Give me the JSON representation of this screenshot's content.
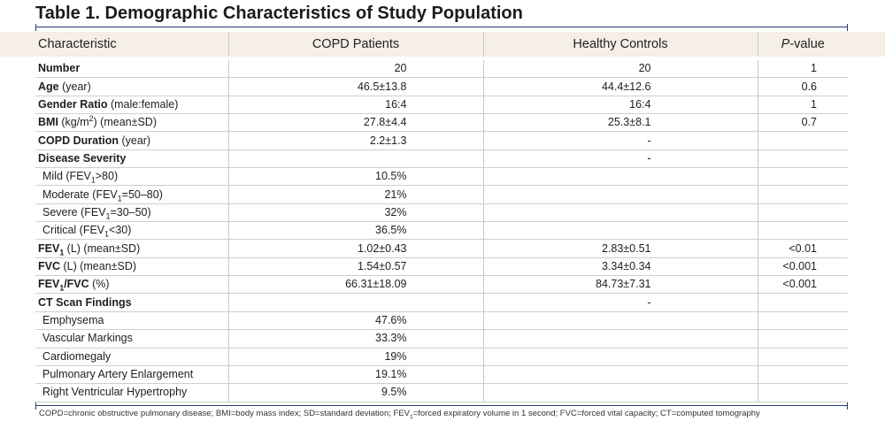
{
  "title": "Table 1. Demographic Characteristics of Study Population",
  "headers": {
    "characteristic": "Characteristic",
    "copd": "COPD Patients",
    "controls": "Healthy Controls",
    "p_italic": "P",
    "p_rest": "-value"
  },
  "rows": [
    {
      "bold": "Number",
      "rest": "",
      "copd": "20",
      "control": "20",
      "p": "1"
    },
    {
      "bold": "Age",
      "rest": " (year)",
      "copd": "46.5±13.8",
      "control": "44.4±12.6",
      "p": "0.6"
    },
    {
      "bold": "Gender Ratio",
      "rest": " (male:female)",
      "copd": "16:4",
      "control": "16:4",
      "p": "1"
    },
    {
      "bold": "BMI",
      "rest": " (kg/m",
      "sup": "2",
      "rest2": ") (mean±SD)",
      "copd": "27.8±4.4",
      "control": "25.3±8.1",
      "p": "0.7"
    },
    {
      "bold": "COPD Duration",
      "rest": " (year)",
      "copd": "2.2±1.3",
      "control": "-",
      "p": ""
    },
    {
      "bold": "Disease Severity",
      "rest": "",
      "copd": "",
      "control": "-",
      "p": ""
    },
    {
      "text": "Mild (FEV",
      "sub": "1",
      "rest": ">80)",
      "copd": "10.5%",
      "control": "",
      "p": ""
    },
    {
      "text": "Moderate (FEV",
      "sub": "1",
      "rest": "=50–80)",
      "copd": "21%",
      "control": "",
      "p": ""
    },
    {
      "text": "Severe (FEV",
      "sub": "1",
      "rest": "=30–50)",
      "copd": "32%",
      "control": "",
      "p": ""
    },
    {
      "text": "Critical (FEV",
      "sub": "1",
      "rest": "<30)",
      "copd": "36.5%",
      "control": "",
      "p": ""
    },
    {
      "bold": "FEV",
      "bsub": "1",
      "rest": " (L) (mean±SD)",
      "copd": "1.02±0.43",
      "control": "2.83±0.51",
      "p": "<0.01"
    },
    {
      "bold": "FVC",
      "rest": " (L) (mean±SD)",
      "copd": "1.54±0.57",
      "control": "3.34±0.34",
      "p": "<0.001"
    },
    {
      "bold": "FEV",
      "bsub": "1",
      "bold2": "/FVC",
      "rest": " (%)",
      "copd": "66.31±18.09",
      "control": "84.73±7.31",
      "p": "<0.001"
    },
    {
      "bold": "CT Scan Findings",
      "rest": "",
      "copd": "",
      "control": "-",
      "p": ""
    },
    {
      "text": "Emphysema",
      "copd": "47.6%",
      "control": "",
      "p": ""
    },
    {
      "text": "Vascular Markings",
      "copd": "33.3%",
      "control": "",
      "p": ""
    },
    {
      "text": "Cardiomegaly",
      "copd": "19%",
      "control": "",
      "p": ""
    },
    {
      "text": "Pulmonary Artery Enlargement",
      "copd": "19.1%",
      "control": "",
      "p": ""
    },
    {
      "text": "Right Ventricular Hypertrophy",
      "copd": "9.5%",
      "control": "",
      "p": ""
    }
  ],
  "footnote": {
    "part1": "COPD=chronic obstructive pulmonary disease; BMI=body mass index; SD=standard deviation; FEV",
    "sub": "1",
    "part2": "=forced expiratory volume in 1 second; FVC=forced vital capacity; CT=computed tomography"
  },
  "colors": {
    "header_band": "#f6efe7",
    "header_rule": "#e2862e",
    "frame": "#2a3b6e"
  }
}
